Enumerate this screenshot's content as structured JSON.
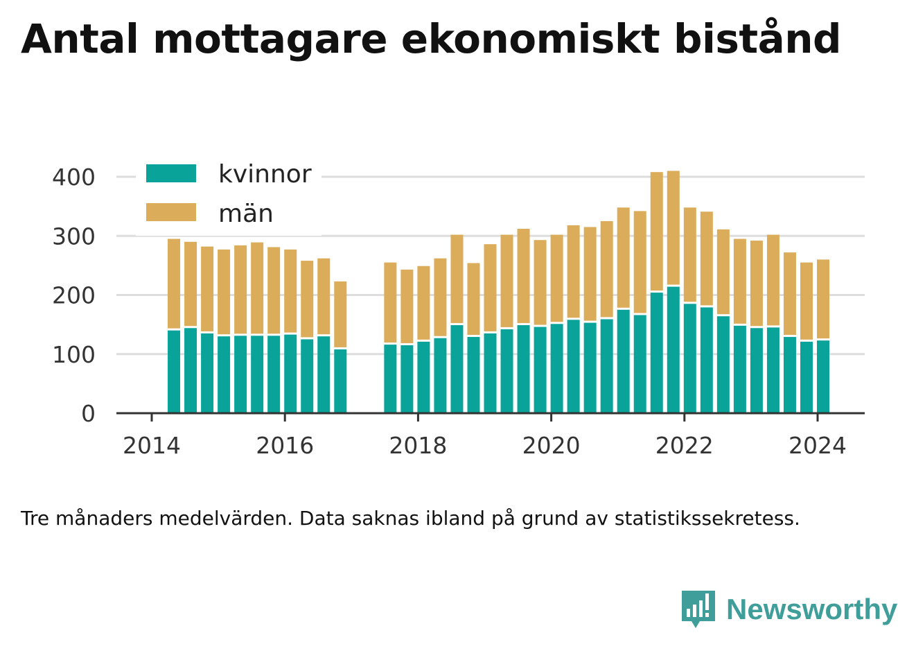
{
  "title": "Antal mottagare ekonomiskt bistånd",
  "note": "Tre månaders medelvärden. Data saknas ibland på grund av statistikssekretess.",
  "brand": "Newsworthy",
  "colors": {
    "kvinnor": "#0aa39a",
    "man": "#dbad5b",
    "grid": "#dddddd",
    "axis": "#333333",
    "brand": "#3f9e99"
  },
  "chart_data": {
    "type": "bar",
    "stacked": true,
    "title": "Antal mottagare ekonomiskt bistånd",
    "xlabel": "",
    "ylabel": "",
    "ylim": [
      0,
      400
    ],
    "yticks": [
      "0",
      "100",
      "200",
      "300",
      "400"
    ],
    "xticks": [
      "2014",
      "2016",
      "2018",
      "2020",
      "2022",
      "2024"
    ],
    "xlim": [
      "2013-07",
      "2024-09"
    ],
    "legend_position": "top-left",
    "grid": true,
    "x": [
      "2014-05",
      "2014-08",
      "2014-11",
      "2015-02",
      "2015-05",
      "2015-08",
      "2015-11",
      "2016-02",
      "2016-05",
      "2016-08",
      "2016-11",
      "2017-08",
      "2017-11",
      "2018-02",
      "2018-05",
      "2018-08",
      "2018-11",
      "2019-02",
      "2019-05",
      "2019-08",
      "2019-11",
      "2020-02",
      "2020-05",
      "2020-08",
      "2020-11",
      "2021-02",
      "2021-05",
      "2021-08",
      "2021-11",
      "2022-02",
      "2022-05",
      "2022-08",
      "2022-11",
      "2023-02",
      "2023-05",
      "2023-08",
      "2023-11",
      "2024-02"
    ],
    "series": [
      {
        "name": "kvinnor",
        "values": [
          140,
          144,
          135,
          130,
          131,
          131,
          131,
          133,
          125,
          130,
          108,
          116,
          115,
          121,
          127,
          149,
          129,
          135,
          142,
          149,
          146,
          151,
          158,
          153,
          159,
          175,
          166,
          204,
          214,
          185,
          179,
          164,
          148,
          144,
          145,
          129,
          121,
          123
        ]
      },
      {
        "name": "män",
        "values": [
          155,
          146,
          147,
          147,
          153,
          158,
          150,
          144,
          133,
          132,
          115,
          139,
          128,
          128,
          135,
          153,
          125,
          151,
          160,
          163,
          147,
          151,
          160,
          162,
          166,
          173,
          176,
          204,
          196,
          163,
          162,
          147,
          147,
          148,
          157,
          143,
          134,
          137
        ]
      }
    ]
  }
}
